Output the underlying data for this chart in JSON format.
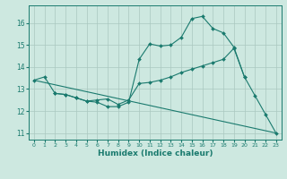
{
  "xlabel": "Humidex (Indice chaleur)",
  "bg_color": "#cde8e0",
  "grid_color": "#aac8c0",
  "line_color": "#1a7a6e",
  "xlim": [
    -0.5,
    23.5
  ],
  "ylim": [
    10.7,
    16.8
  ],
  "yticks": [
    11,
    12,
    13,
    14,
    15,
    16
  ],
  "xticks": [
    0,
    1,
    2,
    3,
    4,
    5,
    6,
    7,
    8,
    9,
    10,
    11,
    12,
    13,
    14,
    15,
    16,
    17,
    18,
    19,
    20,
    21,
    22,
    23
  ],
  "series1_x": [
    0,
    1,
    2,
    3,
    4,
    5,
    6,
    7,
    8,
    9,
    10,
    11,
    12,
    13,
    14,
    15,
    16,
    17,
    18,
    19,
    20,
    21,
    22,
    23
  ],
  "series1_y": [
    13.4,
    13.55,
    12.8,
    12.75,
    12.6,
    12.45,
    12.4,
    12.2,
    12.2,
    12.4,
    14.35,
    15.05,
    14.95,
    15.0,
    15.35,
    16.2,
    16.3,
    15.75,
    15.55,
    14.9,
    13.55,
    12.7,
    11.85,
    11.0
  ],
  "series2_x": [
    2,
    3,
    4,
    5,
    6,
    7,
    8,
    9,
    10,
    11,
    12,
    13,
    14,
    15,
    16,
    17,
    18,
    19,
    20
  ],
  "series2_y": [
    12.8,
    12.75,
    12.6,
    12.45,
    12.5,
    12.55,
    12.3,
    12.5,
    13.25,
    13.3,
    13.4,
    13.55,
    13.75,
    13.9,
    14.05,
    14.2,
    14.35,
    14.85,
    13.55
  ],
  "series3_x": [
    0,
    23
  ],
  "series3_y": [
    13.4,
    11.0
  ]
}
